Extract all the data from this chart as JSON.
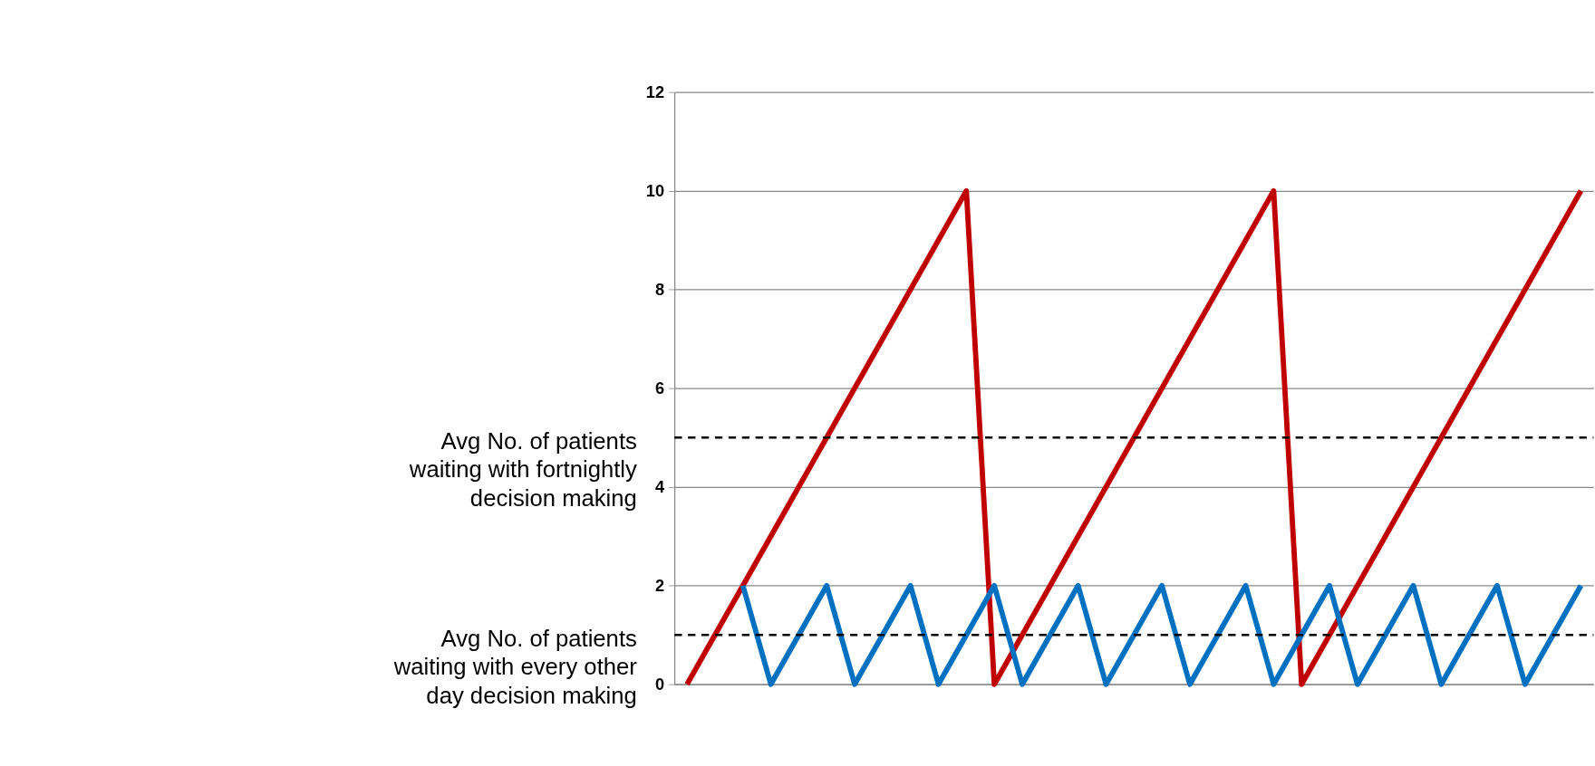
{
  "chart_data": {
    "type": "line",
    "categories": [
      null,
      null,
      null,
      null,
      null,
      null,
      null,
      null,
      null,
      null,
      null,
      null,
      null,
      null,
      null,
      null,
      null,
      null,
      null,
      null,
      null,
      null,
      null,
      null,
      null,
      null,
      null,
      null,
      null,
      null,
      null,
      null,
      null
    ],
    "series": [
      {
        "color": "#c00000",
        "values": [
          0,
          1,
          2,
          3,
          4,
          5,
          6,
          7,
          8,
          9,
          10,
          0,
          1,
          2,
          3,
          4,
          5,
          6,
          7,
          8,
          9,
          10,
          0,
          1,
          2,
          3,
          4,
          5,
          6,
          7,
          8,
          9,
          10
        ]
      },
      {
        "color": "#0070c0",
        "values": [
          null,
          null,
          2,
          0,
          1,
          2,
          0,
          1,
          2,
          0,
          1,
          2,
          0,
          1,
          2,
          0,
          1,
          2,
          0,
          1,
          2,
          0,
          1,
          2,
          0,
          1,
          2,
          0,
          1,
          2,
          0,
          1,
          2
        ]
      }
    ],
    "ylim": [
      0,
      12
    ],
    "yticks": [
      0,
      2,
      4,
      6,
      8,
      10,
      12
    ],
    "ref_lines": [
      {
        "axis": "y",
        "value": 5,
        "label": "Avg No. of patients\nwaiting with fortnightly\ndecision making",
        "color": "#000000",
        "line_style": "dashed"
      },
      {
        "axis": "y",
        "value": 1,
        "label": "Avg No. of patients\nwaiting with every other\nday decision making",
        "color": "#000000",
        "line_style": "dashed"
      }
    ],
    "grid": "y",
    "tick_labels": "y",
    "line_style": "solid"
  }
}
